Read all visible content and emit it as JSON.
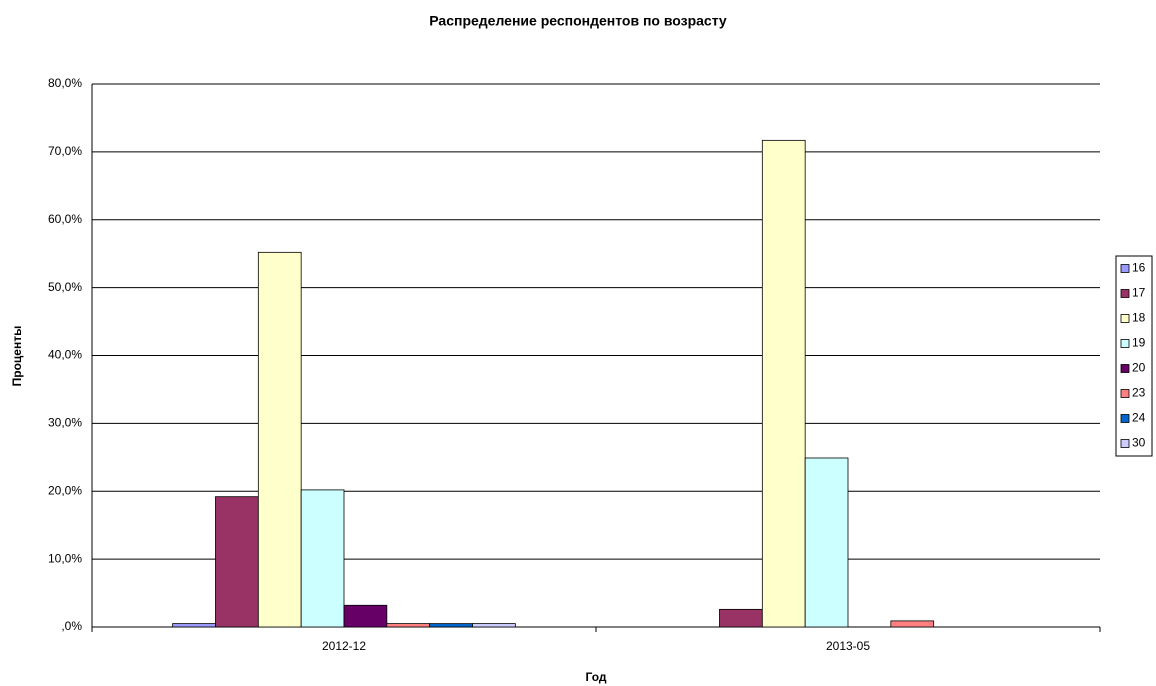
{
  "chart_data": {
    "type": "bar",
    "title": "Распределение респондентов по возрасту",
    "xlabel": "Год",
    "ylabel": "Проценты",
    "categories": [
      "2012-12",
      "2013-05"
    ],
    "series": [
      {
        "name": "16",
        "color": "#9999ff",
        "values": [
          0.5,
          0
        ]
      },
      {
        "name": "17",
        "color": "#993366",
        "values": [
          19.2,
          2.6
        ]
      },
      {
        "name": "18",
        "color": "#ffffcc",
        "values": [
          55.2,
          71.7
        ]
      },
      {
        "name": "19",
        "color": "#ccffff",
        "values": [
          20.2,
          24.9
        ]
      },
      {
        "name": "20",
        "color": "#660066",
        "values": [
          3.2,
          0
        ]
      },
      {
        "name": "23",
        "color": "#ff8080",
        "values": [
          0.5,
          0.9
        ]
      },
      {
        "name": "24",
        "color": "#0066cc",
        "values": [
          0.5,
          0
        ]
      },
      {
        "name": "30",
        "color": "#ccccff",
        "values": [
          0.5,
          0
        ]
      }
    ],
    "ylim": [
      0,
      80
    ],
    "yticks": [
      {
        "value": 0,
        "label": ",0%"
      },
      {
        "value": 10,
        "label": "10,0%"
      },
      {
        "value": 20,
        "label": "20,0%"
      },
      {
        "value": 30,
        "label": "30,0%"
      },
      {
        "value": 40,
        "label": "40,0%"
      },
      {
        "value": 50,
        "label": "50,0%"
      },
      {
        "value": 60,
        "label": "60,0%"
      },
      {
        "value": 70,
        "label": "70,0%"
      },
      {
        "value": 80,
        "label": "80,0%"
      }
    ],
    "grid": true,
    "legend": "right"
  }
}
